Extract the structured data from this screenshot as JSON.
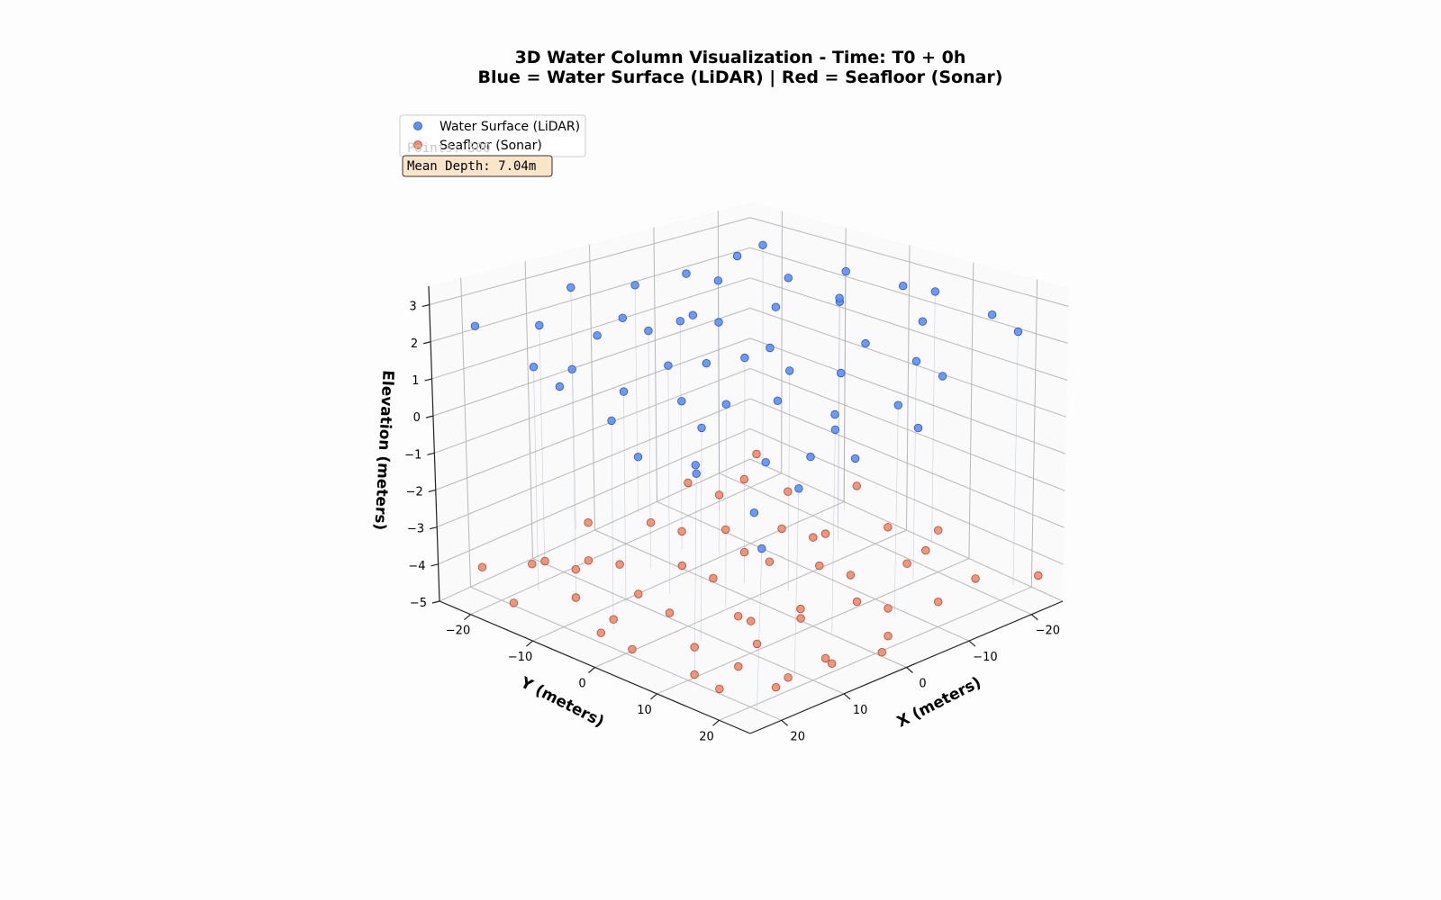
{
  "chart_data": {
    "type": "scatter",
    "title_lines": [
      "3D Water Column Visualization - Time: T0 + 0h",
      "Blue = Water Surface (LiDAR) | Red = Seafloor (Sonar)"
    ],
    "xlabel": "X (meters)",
    "ylabel": "Y (meters)",
    "zlabel": "Elevation (meters)",
    "x_ticks": [
      -20,
      -10,
      0,
      10,
      20
    ],
    "y_ticks": [
      -20,
      -10,
      0,
      10,
      20
    ],
    "z_ticks": [
      3,
      2,
      1,
      0,
      -1,
      -2,
      -3,
      -4,
      -5
    ],
    "x_tick_labels": [
      "−20",
      "−10",
      "0",
      "10",
      "20"
    ],
    "y_tick_labels": [
      "−20",
      "−10",
      "0",
      "10",
      "20"
    ],
    "z_tick_labels": [
      "3",
      "2",
      "1",
      "0",
      "−1",
      "−2",
      "−3",
      "−4",
      "−5"
    ],
    "xlim": [
      -25,
      25
    ],
    "ylim": [
      -25,
      25
    ],
    "zlim": [
      -5,
      3.5
    ],
    "grid": true,
    "legend_position": "upper-left",
    "legend": [
      {
        "name": "Water Surface (LiDAR)",
        "color": "#5b8ff9"
      },
      {
        "name": "Seafloor (Sonar)",
        "color": "#f08a6c"
      }
    ],
    "stats_box": {
      "ghost_text": "Points: 500",
      "text": "Mean Depth: 7.04m",
      "background": "#fbe5c8"
    },
    "series": [
      {
        "name": "Water Surface (LiDAR)",
        "color": "#5b8ff9",
        "edge_color": "#2b55c0",
        "points": [
          [
            -20,
            -22,
            2.6
          ],
          [
            -12,
            -18,
            2.4
          ],
          [
            -5,
            -20,
            2.9
          ],
          [
            2,
            -22,
            2.7
          ],
          [
            8,
            -21,
            3.0
          ],
          [
            15,
            -23,
            2.5
          ],
          [
            22,
            -20,
            2.8
          ],
          [
            -22,
            -12,
            2.2
          ],
          [
            -15,
            -10,
            2.7
          ],
          [
            -8,
            -12,
            2.3
          ],
          [
            0,
            -14,
            2.9
          ],
          [
            7,
            -11,
            2.5
          ],
          [
            13,
            -13,
            2.2
          ],
          [
            20,
            -10,
            2.7
          ],
          [
            -21,
            -3,
            2.5
          ],
          [
            -14,
            -5,
            2.1
          ],
          [
            -7,
            -2,
            2.8
          ],
          [
            -1,
            -4,
            2.4
          ],
          [
            5,
            -1,
            2.6
          ],
          [
            11,
            -3,
            2.9
          ],
          [
            18,
            -5,
            2.3
          ],
          [
            24,
            -2,
            2.6
          ],
          [
            -23,
            5,
            2.7
          ],
          [
            -17,
            3,
            2.3
          ],
          [
            -10,
            6,
            2.9
          ],
          [
            -3,
            4,
            2.5
          ],
          [
            3,
            7,
            2.2
          ],
          [
            9,
            5,
            2.8
          ],
          [
            16,
            3,
            2.4
          ],
          [
            22,
            6,
            2.6
          ],
          [
            -20,
            13,
            2.4
          ],
          [
            -13,
            11,
            2.8
          ],
          [
            -6,
            14,
            2.2
          ],
          [
            1,
            12,
            2.6
          ],
          [
            7,
            15,
            2.9
          ],
          [
            14,
            12,
            2.3
          ],
          [
            21,
            14,
            2.7
          ],
          [
            -22,
            21,
            2.6
          ],
          [
            -15,
            19,
            2.2
          ],
          [
            -8,
            22,
            2.8
          ],
          [
            -2,
            20,
            2.4
          ],
          [
            5,
            23,
            2.6
          ],
          [
            12,
            21,
            2.9
          ],
          [
            19,
            19,
            2.3
          ],
          [
            24,
            23,
            2.5
          ],
          [
            -18,
            -16,
            2.8
          ],
          [
            -3,
            -17,
            2.5
          ],
          [
            10,
            -17,
            2.7
          ],
          [
            -11,
            0,
            2.6
          ],
          [
            14,
            1,
            2.4
          ],
          [
            -4,
            9,
            2.8
          ],
          [
            18,
            9,
            2.6
          ],
          [
            -11,
            17,
            2.5
          ],
          [
            9,
            18,
            2.3
          ],
          [
            0,
            1,
            2.7
          ]
        ]
      },
      {
        "name": "Seafloor (Sonar)",
        "color": "#f08a6c",
        "edge_color": "#b24a30",
        "points": [
          [
            -21,
            -22,
            -4.2
          ],
          [
            -14,
            -20,
            -4.6
          ],
          [
            -6,
            -23,
            -4.0
          ],
          [
            1,
            -21,
            -4.5
          ],
          [
            8,
            -22,
            -4.1
          ],
          [
            16,
            -20,
            -4.7
          ],
          [
            23,
            -23,
            -4.3
          ],
          [
            -23,
            -13,
            -4.5
          ],
          [
            -16,
            -11,
            -4.1
          ],
          [
            -9,
            -14,
            -4.8
          ],
          [
            -2,
            -12,
            -4.3
          ],
          [
            6,
            -10,
            -4.6
          ],
          [
            12,
            -13,
            -4.0
          ],
          [
            19,
            -11,
            -4.4
          ],
          [
            -20,
            -4,
            -4.7
          ],
          [
            -13,
            -2,
            -4.2
          ],
          [
            -6,
            -5,
            -4.5
          ],
          [
            0,
            -3,
            -4.1
          ],
          [
            7,
            -1,
            -4.8
          ],
          [
            13,
            -4,
            -4.3
          ],
          [
            20,
            -2,
            -4.6
          ],
          [
            -22,
            4,
            -4.2
          ],
          [
            -15,
            6,
            -4.7
          ],
          [
            -8,
            3,
            -4.4
          ],
          [
            -1,
            5,
            -4.0
          ],
          [
            5,
            7,
            -4.5
          ],
          [
            12,
            4,
            -4.2
          ],
          [
            18,
            6,
            -4.8
          ],
          [
            24,
            3,
            -4.3
          ],
          [
            -21,
            12,
            -4.6
          ],
          [
            -14,
            14,
            -4.1
          ],
          [
            -7,
            11,
            -4.5
          ],
          [
            0,
            13,
            -4.3
          ],
          [
            6,
            15,
            -4.7
          ],
          [
            13,
            12,
            -4.2
          ],
          [
            20,
            14,
            -4.5
          ],
          [
            -23,
            20,
            -4.3
          ],
          [
            -16,
            22,
            -4.6
          ],
          [
            -9,
            19,
            -4.1
          ],
          [
            -3,
            21,
            -4.5
          ],
          [
            4,
            23,
            -4.2
          ],
          [
            11,
            20,
            -4.7
          ],
          [
            17,
            22,
            -4.4
          ],
          [
            23,
            19,
            -4.0
          ],
          [
            -18,
            -17,
            -4.3
          ],
          [
            -4,
            -16,
            -4.7
          ],
          [
            10,
            -18,
            -4.2
          ],
          [
            -11,
            -7,
            -4.4
          ],
          [
            15,
            -7,
            -4.6
          ],
          [
            -17,
            9,
            -4.5
          ],
          [
            9,
            9,
            -4.1
          ],
          [
            -5,
            17,
            -4.6
          ],
          [
            15,
            17,
            -4.3
          ],
          [
            3,
            -8,
            -4.4
          ],
          [
            -19,
            16,
            -4.2
          ],
          [
            21,
            8,
            -4.5
          ]
        ]
      }
    ]
  }
}
